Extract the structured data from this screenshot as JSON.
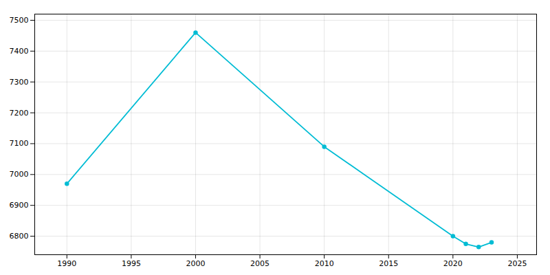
{
  "chart_data": {
    "type": "line",
    "x": [
      1990,
      2000,
      2010,
      2020,
      2021,
      2022,
      2023
    ],
    "values": [
      6970,
      7460,
      7090,
      6800,
      6775,
      6765,
      6780
    ],
    "color": "#00BCD4",
    "marker": "circle",
    "xlim": [
      1987.5,
      2026.5
    ],
    "ylim": [
      6740,
      7520
    ],
    "xticks": [
      1990,
      1995,
      2000,
      2005,
      2010,
      2015,
      2020,
      2025
    ],
    "yticks": [
      6800,
      6900,
      7000,
      7100,
      7200,
      7300,
      7400,
      7500
    ],
    "grid": true
  }
}
